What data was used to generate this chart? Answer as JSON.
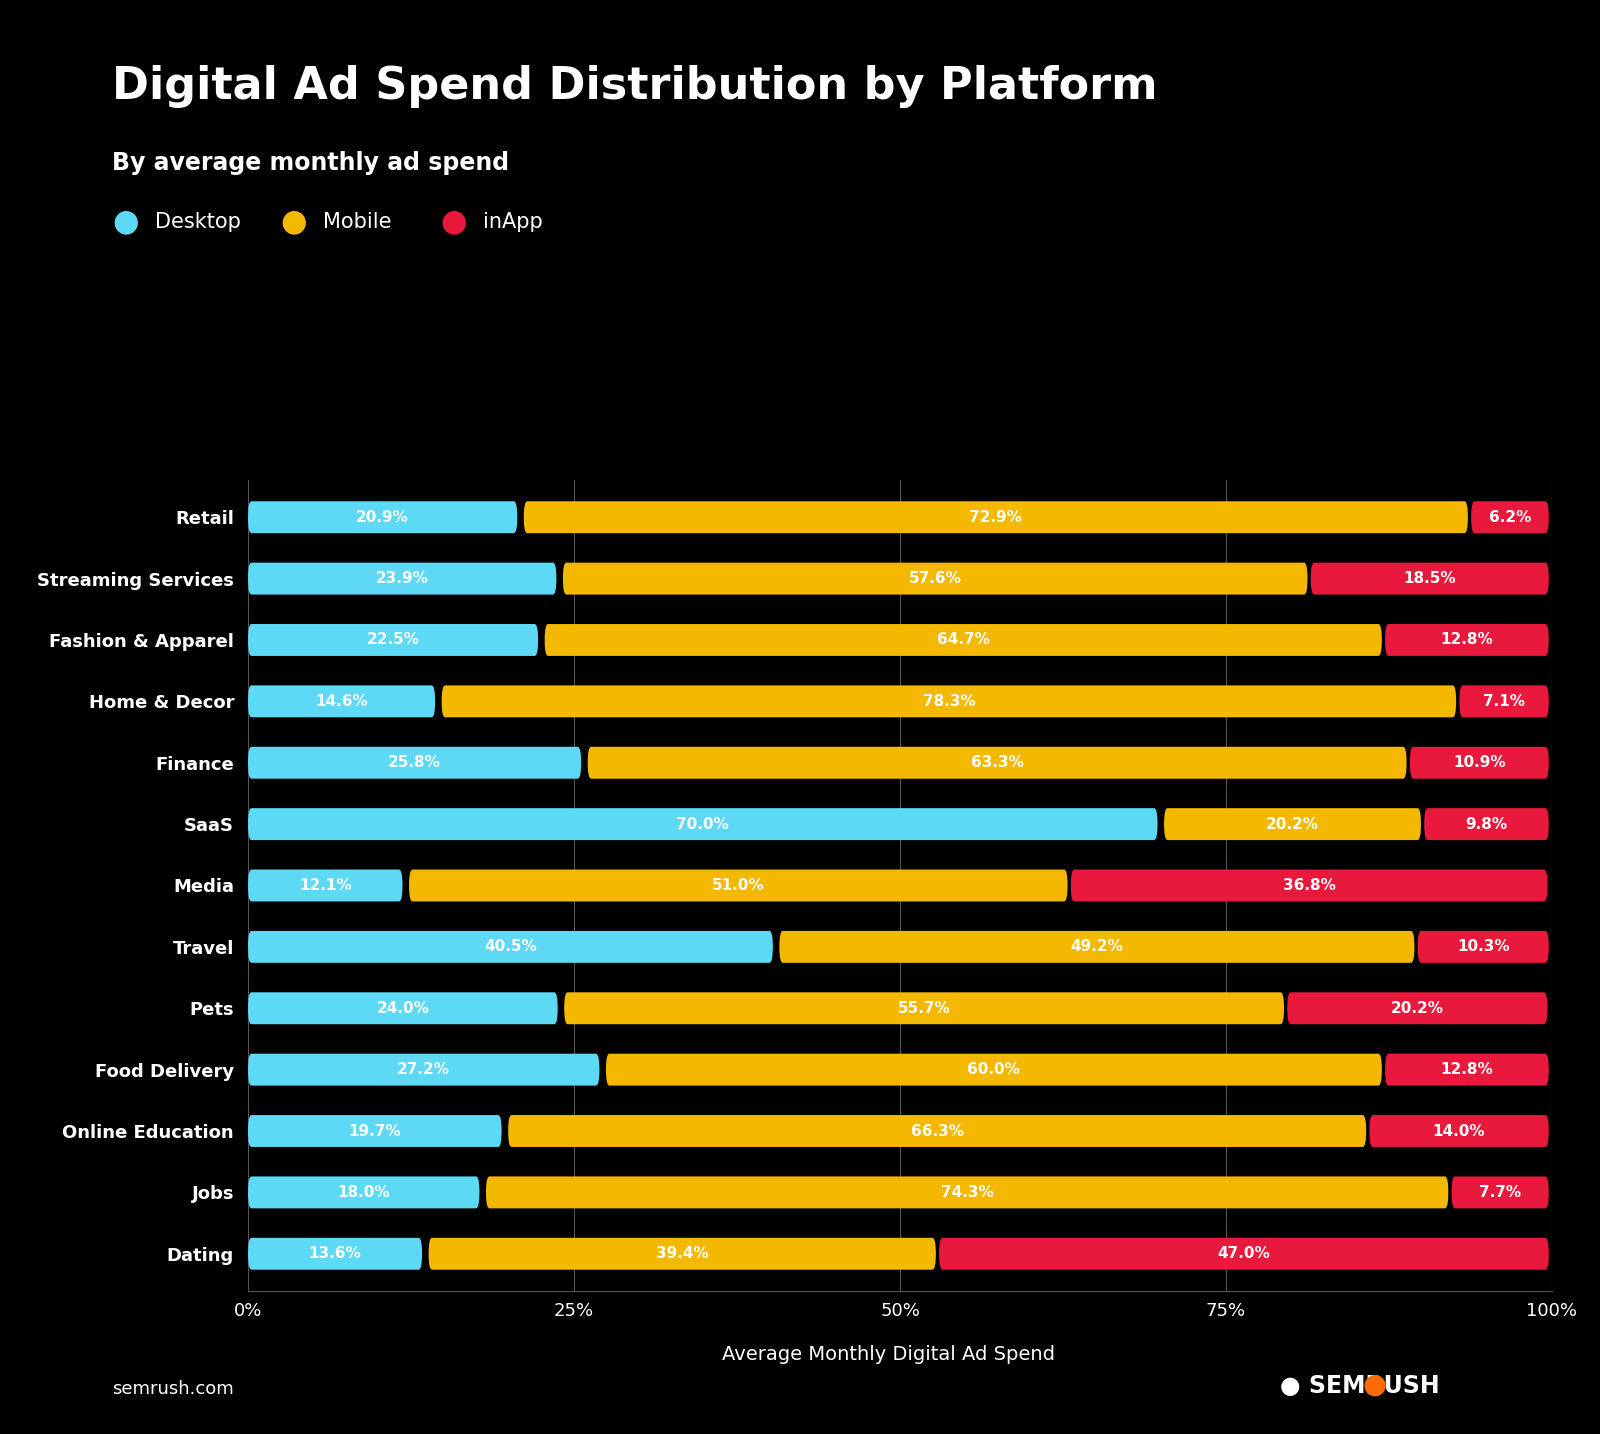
{
  "title": "Digital Ad Spend Distribution by Platform",
  "subtitle": "By average monthly ad spend",
  "xlabel": "Average Monthly Digital Ad Spend",
  "background_color": "#000000",
  "text_color": "#ffffff",
  "desktop_color": "#5DD8F5",
  "mobile_color": "#F5B800",
  "inapp_color": "#E8193C",
  "categories": [
    "Retail",
    "Streaming Services",
    "Fashion & Apparel",
    "Home & Decor",
    "Finance",
    "SaaS",
    "Media",
    "Travel",
    "Pets",
    "Food Delivery",
    "Online Education",
    "Jobs",
    "Dating"
  ],
  "desktop": [
    20.9,
    23.9,
    22.5,
    14.6,
    25.8,
    70.0,
    12.1,
    40.5,
    24.0,
    27.2,
    19.7,
    18.0,
    13.6
  ],
  "mobile": [
    72.9,
    57.6,
    64.7,
    78.3,
    63.3,
    20.2,
    51.0,
    49.2,
    55.7,
    60.0,
    66.3,
    74.3,
    39.4
  ],
  "inapp": [
    6.2,
    18.5,
    12.8,
    7.1,
    10.9,
    9.8,
    36.8,
    10.3,
    20.2,
    12.8,
    14.0,
    7.7,
    47.0
  ],
  "legend_labels": [
    "Desktop",
    "Mobile",
    "inApp"
  ],
  "watermark": "semrush.com",
  "tick_labels": [
    "0%",
    "25%",
    "50%",
    "75%",
    "100%"
  ],
  "tick_values": [
    0,
    25,
    50,
    75,
    100
  ]
}
